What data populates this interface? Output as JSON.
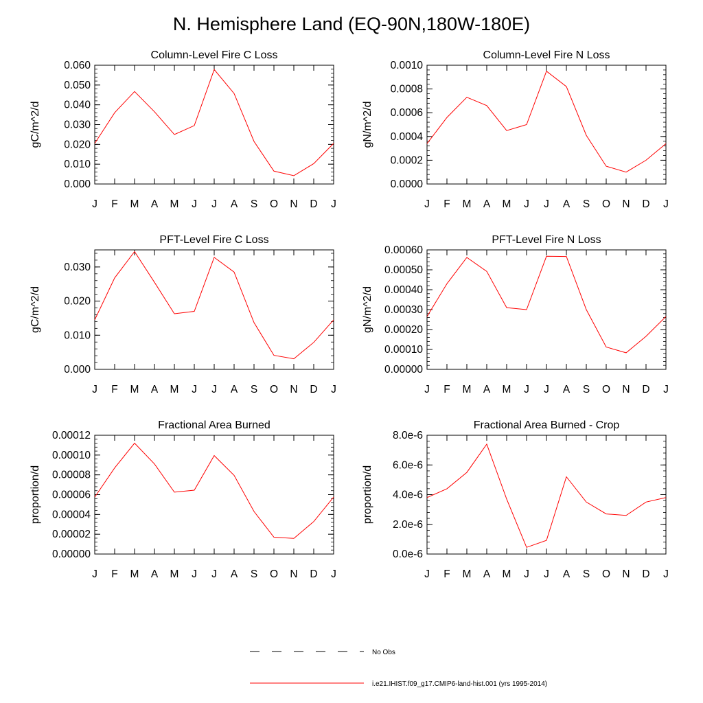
{
  "page": {
    "title": "N. Hemisphere Land (EQ-90N,180W-180E)"
  },
  "months": [
    "J",
    "F",
    "M",
    "A",
    "M",
    "J",
    "J",
    "A",
    "S",
    "O",
    "N",
    "D",
    "J"
  ],
  "legend": {
    "obs_label": "No Obs",
    "model_label": "i.e21.IHIST.f09_g17.CMIP6-land-hist.001 (yrs 1995-2014)",
    "model_color": "#ff0000",
    "obs_color": "#000000"
  },
  "chart_data": [
    {
      "type": "line",
      "title": "Column-Level Fire C Loss",
      "ylabel": "gC/m^2/d",
      "ylim": [
        0,
        0.06
      ],
      "yticks": [
        0,
        0.01,
        0.02,
        0.03,
        0.04,
        0.05,
        0.06
      ],
      "yticklabels": [
        "0.000",
        "0.010",
        "0.020",
        "0.030",
        "0.040",
        "0.050",
        "0.060"
      ],
      "series": [
        {
          "values": [
            0.0205,
            0.036,
            0.0467,
            0.0365,
            0.025,
            0.0295,
            0.0578,
            0.0457,
            0.0215,
            0.0065,
            0.0042,
            0.0103,
            0.0205
          ]
        }
      ]
    },
    {
      "type": "line",
      "title": "Column-Level Fire N Loss",
      "ylabel": "gN/m^2/d",
      "ylim": [
        0,
        0.001
      ],
      "yticks": [
        0,
        0.0002,
        0.0004,
        0.0006,
        0.0008,
        0.001
      ],
      "yticklabels": [
        "0.0000",
        "0.0002",
        "0.0004",
        "0.0006",
        "0.0008",
        "0.0010"
      ],
      "series": [
        {
          "values": [
            0.00034,
            0.00056,
            0.00073,
            0.00066,
            0.00045,
            0.0005,
            0.00095,
            0.00082,
            0.00041,
            0.00015,
            0.0001,
            0.0002,
            0.00034
          ]
        }
      ]
    },
    {
      "type": "line",
      "title": "PFT-Level Fire C Loss",
      "ylabel": "gC/m^2/d",
      "ylim": [
        0,
        0.035
      ],
      "yticks": [
        0,
        0.01,
        0.02,
        0.03
      ],
      "yticklabels": [
        "0.000",
        "0.010",
        "0.020",
        "0.030"
      ],
      "series": [
        {
          "values": [
            0.0145,
            0.0268,
            0.0345,
            0.0255,
            0.0163,
            0.017,
            0.0328,
            0.0285,
            0.0137,
            0.0041,
            0.0031,
            0.0079,
            0.0145
          ]
        }
      ]
    },
    {
      "type": "line",
      "title": "PFT-Level Fire N Loss",
      "ylabel": "gN/m^2/d",
      "ylim": [
        0,
        0.0006
      ],
      "yticks": [
        0,
        0.0001,
        0.0002,
        0.0003,
        0.0004,
        0.0005,
        0.0006
      ],
      "yticklabels": [
        "0.00000",
        "0.00010",
        "0.00020",
        "0.00030",
        "0.00040",
        "0.00050",
        "0.00060"
      ],
      "series": [
        {
          "values": [
            0.000265,
            0.00043,
            0.000562,
            0.000492,
            0.00031,
            0.0003,
            0.000568,
            0.000567,
            0.0003,
            0.000112,
            8.3e-05,
            0.000166,
            0.000265
          ]
        }
      ]
    },
    {
      "type": "line",
      "title": "Fractional Area Burned",
      "ylabel": "proportion/d",
      "ylim": [
        0,
        0.00012
      ],
      "yticks": [
        0,
        2e-05,
        4e-05,
        6e-05,
        8e-05,
        0.0001,
        0.00012
      ],
      "yticklabels": [
        "0.00000",
        "0.00002",
        "0.00004",
        "0.00006",
        "0.00008",
        "0.00010",
        "0.00012"
      ],
      "series": [
        {
          "values": [
            5.75e-05,
            8.7e-05,
            0.000112,
            9.1e-05,
            6.25e-05,
            6.45e-05,
            9.95e-05,
            7.95e-05,
            4.3e-05,
            1.7e-05,
            1.58e-05,
            3.28e-05,
            5.75e-05
          ]
        }
      ]
    },
    {
      "type": "line",
      "title": "Fractional Area Burned - Crop",
      "ylabel": "proportion/d",
      "ylim": [
        0,
        8e-06
      ],
      "yticks": [
        0,
        2e-06,
        4e-06,
        6e-06,
        8e-06
      ],
      "yticklabels": [
        "0.0e-6",
        "2.0e-6",
        "4.0e-6",
        "6.0e-6",
        "8.0e-6"
      ],
      "series": [
        {
          "values": [
            3.8e-06,
            4.4e-06,
            5.5e-06,
            7.4e-06,
            3.7e-06,
            4.5e-07,
            9.2e-07,
            5.2e-06,
            3.5e-06,
            2.7e-06,
            2.6e-06,
            3.5e-06,
            3.8e-06
          ]
        }
      ]
    }
  ]
}
